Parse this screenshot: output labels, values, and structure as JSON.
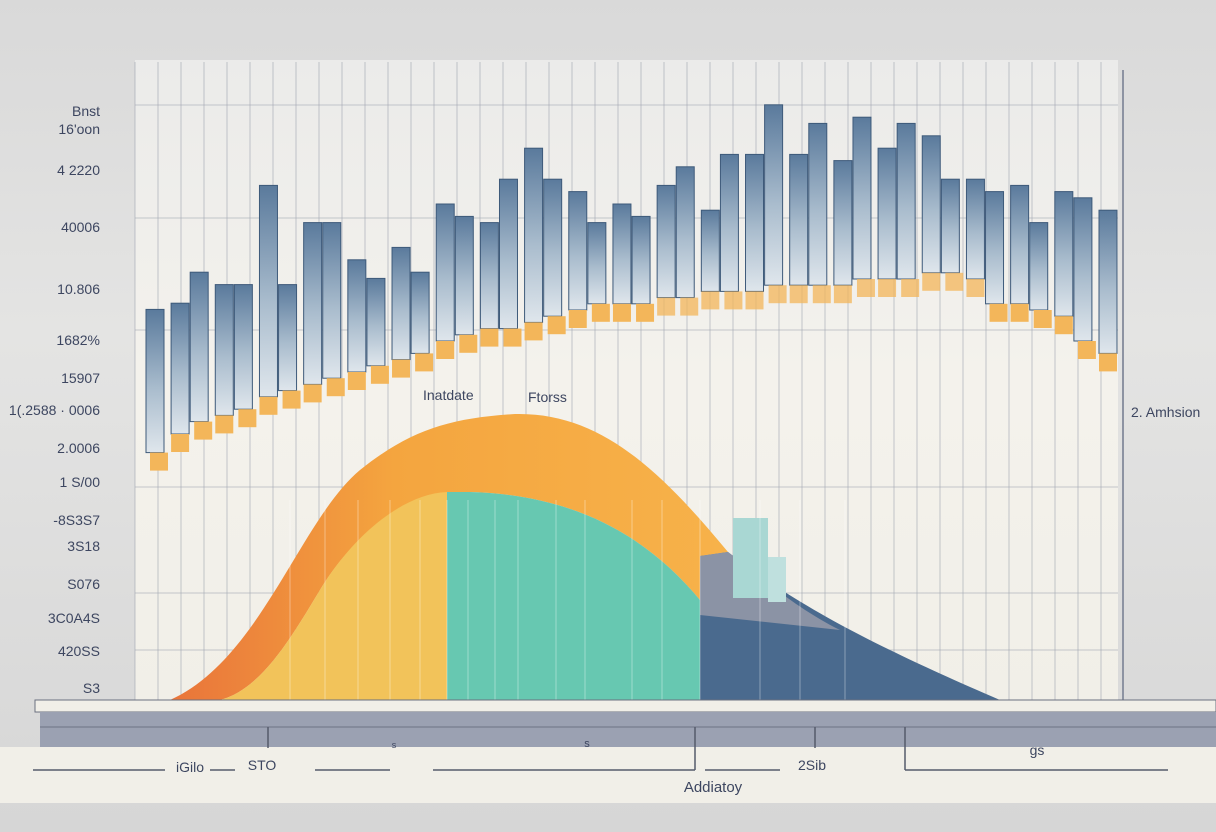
{
  "chart_data": {
    "type": "bar",
    "title": "",
    "xlabel": "Addiatoy",
    "ylabel": "",
    "grid": true,
    "ylim": [
      0,
      100
    ],
    "y_tick_labels": [
      "Bnst",
      "16'oon",
      "4 2220",
      "40006",
      "10.806",
      "1682%",
      "15907",
      "1(.2588 · 0006",
      "2.0006",
      "1 S/00",
      "-8S3S7",
      "3S18",
      "S076",
      "3C0A4S",
      "420SS",
      "S3"
    ],
    "x_tick_labels": [
      "iGilo",
      "STO",
      "s",
      "s",
      "2Sib",
      "gs"
    ],
    "annotations": [
      "Inatdate",
      "Ftorss",
      "2. Amhsion"
    ],
    "series": [
      {
        "tops": [
          63,
          64,
          69,
          67,
          67,
          83,
          67,
          77,
          77,
          71,
          68,
          73,
          69,
          80,
          78,
          77,
          84,
          89,
          84,
          82,
          77,
          80,
          78,
          83,
          86,
          79,
          88,
          88,
          96,
          88,
          93,
          87,
          94,
          89,
          93,
          91,
          84,
          84,
          82,
          83,
          77,
          82,
          81,
          79
        ],
        "bottoms": [
          37,
          40,
          42,
          43,
          44,
          46,
          47,
          48,
          49,
          50,
          51,
          52,
          53,
          55,
          56,
          57,
          57,
          58,
          59,
          60,
          61,
          61,
          61,
          62,
          62,
          63,
          63,
          63,
          64,
          64,
          64,
          64,
          65,
          65,
          65,
          66,
          66,
          65,
          61,
          61,
          60,
          59,
          55,
          53
        ]
      }
    ],
    "curve": {
      "segments_colors": [
        "#f2c35a",
        "#6ecdb7",
        "#4a6b8f"
      ],
      "band_color": "#f0a240"
    },
    "colors": {
      "bar_top": "#4f6f92",
      "bar_mid": "#cfd9e3",
      "bar_base": "#f3b65a",
      "panel": "#f2f0ea",
      "base_slab": "#9ba1b2"
    }
  }
}
